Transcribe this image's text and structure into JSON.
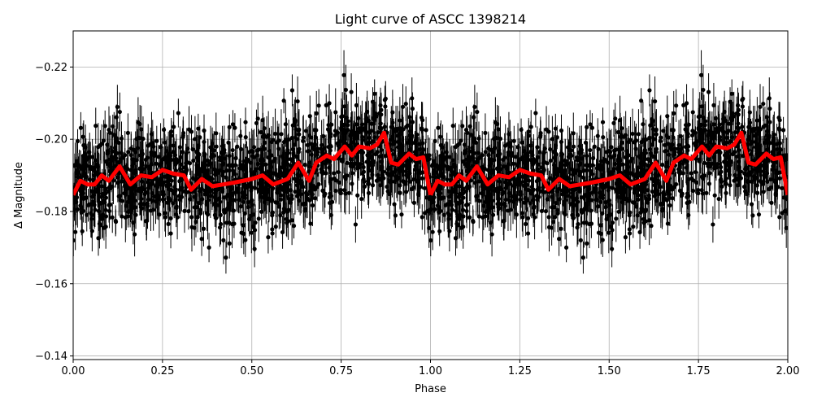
{
  "chart_data": {
    "type": "scatter",
    "title": "Light curve of ASCC 1398214",
    "xlabel": "Phase",
    "ylabel": "Δ Magnitude",
    "xlim": [
      0,
      2
    ],
    "ylim": [
      -0.139,
      -0.23
    ],
    "y_inverted": true,
    "grid": true,
    "xticks": [
      "0.00",
      "0.25",
      "0.50",
      "0.75",
      "1.00",
      "1.25",
      "1.50",
      "1.75",
      "2.00"
    ],
    "xtick_values": [
      0,
      0.25,
      0.5,
      0.75,
      1.0,
      1.25,
      1.5,
      1.75,
      2.0
    ],
    "yticks": [
      "−0.22",
      "−0.20",
      "−0.18",
      "−0.16",
      "−0.14"
    ],
    "ytick_values": [
      -0.22,
      -0.2,
      -0.18,
      -0.16,
      -0.14
    ],
    "colors": {
      "points": "#000000",
      "model": "#ff0000",
      "grid": "#b0b0b0"
    },
    "series": [
      {
        "kind": "errorbar-points",
        "description_visible": "black points with vertical error bars, phase-folded, repeated over two cycles"
      },
      {
        "kind": "line",
        "phase": [
          0,
          0.02,
          0.04,
          0.06,
          0.08,
          0.1,
          0.13,
          0.16,
          0.19,
          0.22,
          0.25,
          0.28,
          0.31,
          0.33,
          0.36,
          0.39,
          0.42,
          0.45,
          0.5,
          0.53,
          0.56,
          0.6,
          0.63,
          0.66,
          0.68,
          0.71,
          0.73,
          0.76,
          0.78,
          0.8,
          0.83,
          0.85,
          0.87,
          0.89,
          0.91,
          0.94,
          0.96,
          0.98,
          1.0
        ],
        "magnitude": [
          -0.1846,
          -0.1885,
          -0.1875,
          -0.1875,
          -0.19,
          -0.1885,
          -0.1925,
          -0.1875,
          -0.19,
          -0.1895,
          -0.1915,
          -0.1905,
          -0.19,
          -0.186,
          -0.189,
          -0.187,
          -0.1875,
          -0.188,
          -0.189,
          -0.19,
          -0.1875,
          -0.189,
          -0.1935,
          -0.1885,
          -0.1935,
          -0.1955,
          -0.1945,
          -0.198,
          -0.1955,
          -0.198,
          -0.1975,
          -0.1985,
          -0.2018,
          -0.1935,
          -0.193,
          -0.196,
          -0.1945,
          -0.195,
          -0.1846
        ]
      }
    ]
  }
}
